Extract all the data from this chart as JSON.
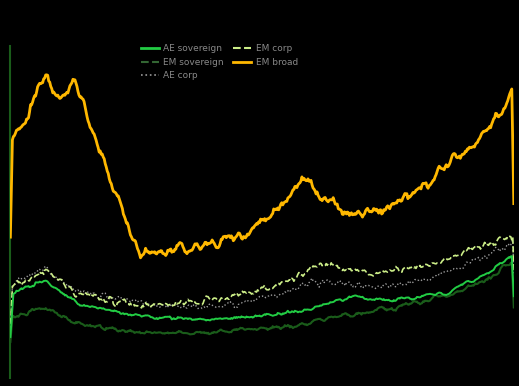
{
  "background_color": "#000000",
  "plot_bg_color": "#000000",
  "figsize": [
    5.19,
    3.86
  ],
  "dpi": 100,
  "lines": {
    "em_broad": {
      "color": "#FFB800",
      "linewidth": 2.0,
      "linestyle": "solid",
      "zorder": 5
    },
    "ae_sovereign": {
      "color": "#22CC44",
      "linewidth": 1.4,
      "linestyle": "solid",
      "zorder": 4
    },
    "ae_corp": {
      "color": "#999999",
      "linewidth": 1.0,
      "linestyle": "dotted",
      "zorder": 3
    },
    "em_corp": {
      "color": "#CCEE88",
      "linewidth": 1.2,
      "linestyle": "dashed",
      "zorder": 3
    },
    "em_sovereign": {
      "color": "#1A5C1A",
      "linewidth": 1.5,
      "linestyle": "solid",
      "zorder": 4
    }
  },
  "legend": {
    "row1": [
      {
        "label": "AE sovereign",
        "color": "#22CC44",
        "linestyle": "solid",
        "linewidth": 2.0
      },
      {
        "label": "EM sovereign",
        "color": "#336633",
        "linestyle": "dashed",
        "linewidth": 1.5
      }
    ],
    "row2": [
      {
        "label": "AE corp",
        "color": "#999999",
        "linestyle": "dotted",
        "linewidth": 1.2
      },
      {
        "label": "EM corp",
        "color": "#CCEE88",
        "linestyle": "dashed",
        "linewidth": 1.5
      }
    ],
    "row3": [
      {
        "label": "EM broad",
        "color": "#FFB800",
        "linestyle": "solid",
        "linewidth": 2.0
      }
    ],
    "fontsize": 6.5,
    "text_color": "#888888"
  },
  "spine_color": "#1A5C1A"
}
